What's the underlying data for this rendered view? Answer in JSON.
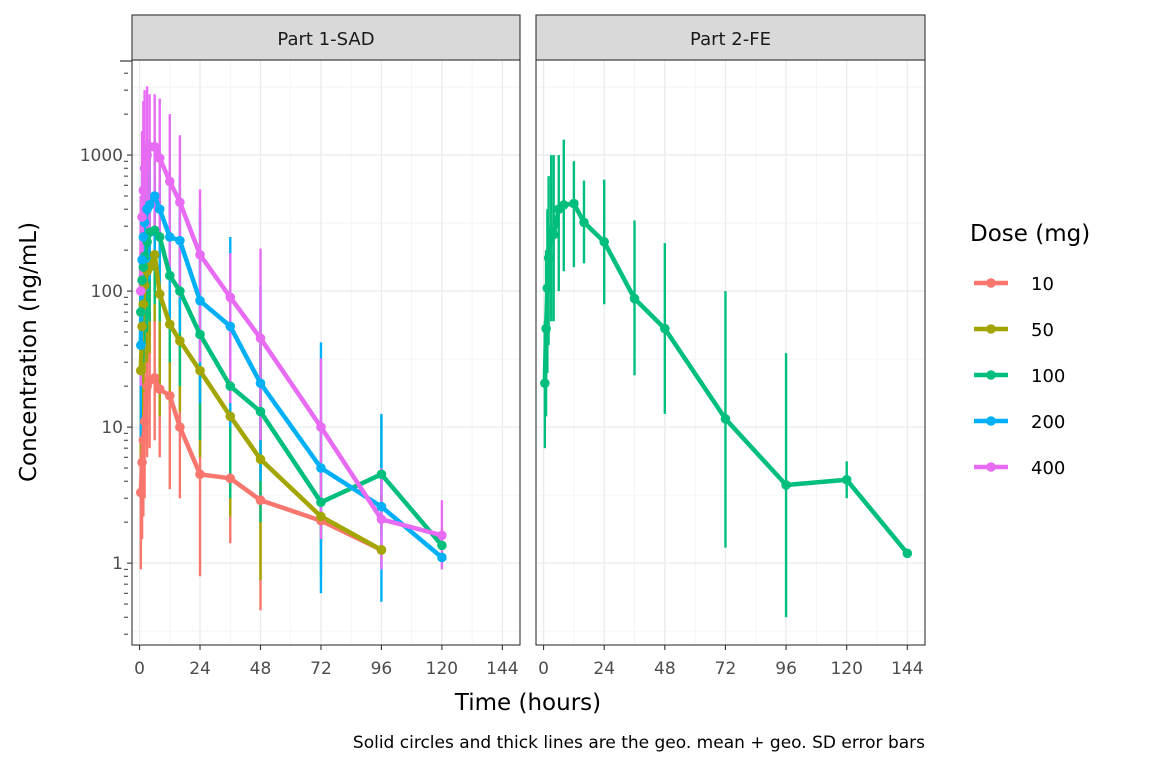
{
  "chart_data": {
    "type": "line",
    "panels": [
      {
        "title": "Part 1-SAD"
      },
      {
        "title": "Part 2-FE"
      }
    ],
    "xlabel": "Time (hours)",
    "ylabel": "Concentration (ng/mL)",
    "yscale": "log10",
    "xlim": [
      -3,
      151
    ],
    "ylim": [
      0.25,
      5000
    ],
    "x_ticks": [
      0,
      24,
      48,
      72,
      96,
      120,
      144
    ],
    "x_tick_labels": [
      "0",
      "24",
      "48",
      "72",
      "96",
      "120",
      "144"
    ],
    "y_ticks": [
      1,
      10,
      100,
      1000
    ],
    "y_tick_labels": [
      "1",
      "10",
      "100",
      "1000"
    ],
    "legend_title": "Dose (mg)",
    "caption": "Solid circles and thick lines are the geo. mean + geo. SD error bars",
    "series": [
      {
        "name": "10",
        "panel": 0,
        "color": "#F8766D",
        "points": [
          {
            "t": 0.5,
            "y": 3.3,
            "lo": 0.9,
            "hi": 11
          },
          {
            "t": 1,
            "y": 5.5,
            "lo": 1.5,
            "hi": 20
          },
          {
            "t": 1.5,
            "y": 8,
            "lo": 2.2,
            "hi": 30
          },
          {
            "t": 2,
            "y": 11,
            "lo": 3,
            "hi": 40
          },
          {
            "t": 3,
            "y": 20,
            "lo": 6,
            "hi": 65
          },
          {
            "t": 4,
            "y": 22,
            "lo": 7,
            "hi": 70
          },
          {
            "t": 6,
            "y": 23,
            "lo": 8,
            "hi": 68
          },
          {
            "t": 8,
            "y": 19,
            "lo": 6,
            "hi": 60
          },
          {
            "t": 12,
            "y": 17,
            "lo": 3.5,
            "hi": 40
          },
          {
            "t": 16,
            "y": 10,
            "lo": 3,
            "hi": 30
          },
          {
            "t": 24,
            "y": 4.5,
            "lo": 0.8,
            "hi": 24
          },
          {
            "t": 36,
            "y": 4.2,
            "lo": 1.4,
            "hi": 12
          },
          {
            "t": 48,
            "y": 2.9,
            "lo": 0.45,
            "hi": 18
          },
          {
            "t": 72,
            "y": 2.05,
            "lo": 1.5,
            "hi": 2.8
          },
          {
            "t": 96,
            "y": 1.25,
            "lo": 1.25,
            "hi": 1.25
          }
        ]
      },
      {
        "name": "50",
        "panel": 0,
        "color": "#A3A500",
        "points": [
          {
            "t": 0.5,
            "y": 26,
            "lo": 6,
            "hi": 120
          },
          {
            "t": 1,
            "y": 55,
            "lo": 12,
            "hi": 250
          },
          {
            "t": 1.5,
            "y": 80,
            "lo": 18,
            "hi": 300
          },
          {
            "t": 2,
            "y": 110,
            "lo": 25,
            "hi": 400
          },
          {
            "t": 3,
            "y": 140,
            "lo": 30,
            "hi": 350
          },
          {
            "t": 4,
            "y": 150,
            "lo": 35,
            "hi": 380
          },
          {
            "t": 6,
            "y": 185,
            "lo": 60,
            "hi": 400
          },
          {
            "t": 8,
            "y": 95,
            "lo": 12,
            "hi": 280
          },
          {
            "t": 12,
            "y": 57,
            "lo": 15,
            "hi": 180
          },
          {
            "t": 16,
            "y": 43,
            "lo": 13,
            "hi": 130
          },
          {
            "t": 24,
            "y": 26,
            "lo": 6,
            "hi": 100
          },
          {
            "t": 36,
            "y": 12,
            "lo": 2.2,
            "hi": 70
          },
          {
            "t": 48,
            "y": 5.8,
            "lo": 0.75,
            "hi": 40
          },
          {
            "t": 72,
            "y": 2.2,
            "lo": 1.5,
            "hi": 3.2
          },
          {
            "t": 96,
            "y": 1.25,
            "lo": 1.25,
            "hi": 1.25
          }
        ]
      },
      {
        "name": "100",
        "panel": 0,
        "color": "#00BF7D",
        "points": [
          {
            "t": 0.5,
            "y": 70,
            "lo": 15,
            "hi": 300
          },
          {
            "t": 1,
            "y": 120,
            "lo": 25,
            "hi": 500
          },
          {
            "t": 1.5,
            "y": 150,
            "lo": 30,
            "hi": 600
          },
          {
            "t": 2,
            "y": 180,
            "lo": 40,
            "hi": 700
          },
          {
            "t": 3,
            "y": 230,
            "lo": 50,
            "hi": 800
          },
          {
            "t": 4,
            "y": 270,
            "lo": 60,
            "hi": 900
          },
          {
            "t": 6,
            "y": 280,
            "lo": 80,
            "hi": 700
          },
          {
            "t": 8,
            "y": 250,
            "lo": 60,
            "hi": 650
          },
          {
            "t": 12,
            "y": 130,
            "lo": 30,
            "hi": 400
          },
          {
            "t": 16,
            "y": 100,
            "lo": 20,
            "hi": 350
          },
          {
            "t": 24,
            "y": 48,
            "lo": 8,
            "hi": 200
          },
          {
            "t": 36,
            "y": 20,
            "lo": 3,
            "hi": 100
          },
          {
            "t": 48,
            "y": 13,
            "lo": 2,
            "hi": 60
          },
          {
            "t": 72,
            "y": 2.8,
            "lo": 0.8,
            "hi": 10
          },
          {
            "t": 96,
            "y": 4.5,
            "lo": 1.6,
            "hi": 12
          },
          {
            "t": 120,
            "y": 1.35,
            "lo": 1.35,
            "hi": 1.35
          }
        ]
      },
      {
        "name": "200",
        "panel": 0,
        "color": "#00B0F6",
        "points": [
          {
            "t": 0.5,
            "y": 40,
            "lo": 8,
            "hi": 200
          },
          {
            "t": 1,
            "y": 170,
            "lo": 40,
            "hi": 700
          },
          {
            "t": 1.5,
            "y": 250,
            "lo": 60,
            "hi": 900
          },
          {
            "t": 2,
            "y": 320,
            "lo": 80,
            "hi": 1100
          },
          {
            "t": 3,
            "y": 400,
            "lo": 100,
            "hi": 1300
          },
          {
            "t": 4,
            "y": 430,
            "lo": 120,
            "hi": 1200
          },
          {
            "t": 6,
            "y": 500,
            "lo": 150,
            "hi": 1300
          },
          {
            "t": 8,
            "y": 400,
            "lo": 100,
            "hi": 1100
          },
          {
            "t": 12,
            "y": 250,
            "lo": 60,
            "hi": 800
          },
          {
            "t": 16,
            "y": 235,
            "lo": 50,
            "hi": 700
          },
          {
            "t": 24,
            "y": 85,
            "lo": 15,
            "hi": 400
          },
          {
            "t": 36,
            "y": 55,
            "lo": 10,
            "hi": 250
          },
          {
            "t": 48,
            "y": 21,
            "lo": 4,
            "hi": 110
          },
          {
            "t": 72,
            "y": 5,
            "lo": 0.6,
            "hi": 42
          },
          {
            "t": 96,
            "y": 2.6,
            "lo": 0.52,
            "hi": 12.5
          },
          {
            "t": 120,
            "y": 1.1,
            "lo": 1.1,
            "hi": 1.1
          }
        ]
      },
      {
        "name": "400",
        "panel": 0,
        "color": "#E76BF3",
        "points": [
          {
            "t": 0.5,
            "y": 100,
            "lo": 20,
            "hi": 500
          },
          {
            "t": 1,
            "y": 350,
            "lo": 70,
            "hi": 1500
          },
          {
            "t": 1.5,
            "y": 550,
            "lo": 100,
            "hi": 2500
          },
          {
            "t": 2,
            "y": 800,
            "lo": 150,
            "hi": 3000
          },
          {
            "t": 3,
            "y": 1000,
            "lo": 200,
            "hi": 3200
          },
          {
            "t": 4,
            "y": 1150,
            "lo": 250,
            "hi": 2800
          },
          {
            "t": 6,
            "y": 1150,
            "lo": 300,
            "hi": 2800
          },
          {
            "t": 8,
            "y": 950,
            "lo": 250,
            "hi": 2600
          },
          {
            "t": 12,
            "y": 640,
            "lo": 150,
            "hi": 2000
          },
          {
            "t": 16,
            "y": 450,
            "lo": 90,
            "hi": 1400
          },
          {
            "t": 24,
            "y": 185,
            "lo": 30,
            "hi": 560
          },
          {
            "t": 36,
            "y": 90,
            "lo": 15,
            "hi": 190
          },
          {
            "t": 48,
            "y": 45,
            "lo": 8,
            "hi": 205
          },
          {
            "t": 72,
            "y": 10,
            "lo": 1.5,
            "hi": 32
          },
          {
            "t": 96,
            "y": 2.1,
            "lo": 0.9,
            "hi": 5
          },
          {
            "t": 120,
            "y": 1.6,
            "lo": 0.9,
            "hi": 2.9
          }
        ]
      },
      {
        "name": "100",
        "panel": 1,
        "color": "#00BF7D",
        "points": [
          {
            "t": 0.5,
            "y": 21,
            "lo": 7,
            "hi": 60
          },
          {
            "t": 1,
            "y": 53,
            "lo": 12,
            "hi": 200
          },
          {
            "t": 1.5,
            "y": 105,
            "lo": 25,
            "hi": 400
          },
          {
            "t": 2,
            "y": 175,
            "lo": 40,
            "hi": 700
          },
          {
            "t": 3,
            "y": 275,
            "lo": 60,
            "hi": 1000
          },
          {
            "t": 4,
            "y": 260,
            "lo": 60,
            "hi": 1000
          },
          {
            "t": 6,
            "y": 400,
            "lo": 100,
            "hi": 1000
          },
          {
            "t": 8,
            "y": 430,
            "lo": 140,
            "hi": 1300
          },
          {
            "t": 12,
            "y": 440,
            "lo": 150,
            "hi": 900
          },
          {
            "t": 16,
            "y": 320,
            "lo": 160,
            "hi": 650
          },
          {
            "t": 24,
            "y": 230,
            "lo": 80,
            "hi": 660
          },
          {
            "t": 36,
            "y": 88,
            "lo": 24,
            "hi": 330
          },
          {
            "t": 48,
            "y": 53,
            "lo": 12.5,
            "hi": 225
          },
          {
            "t": 72,
            "y": 11.5,
            "lo": 1.3,
            "hi": 100
          },
          {
            "t": 96,
            "y": 3.75,
            "lo": 0.4,
            "hi": 35
          },
          {
            "t": 120,
            "y": 4.1,
            "lo": 3,
            "hi": 5.6
          },
          {
            "t": 144,
            "y": 1.18,
            "lo": 1.18,
            "hi": 1.18
          }
        ]
      }
    ]
  }
}
